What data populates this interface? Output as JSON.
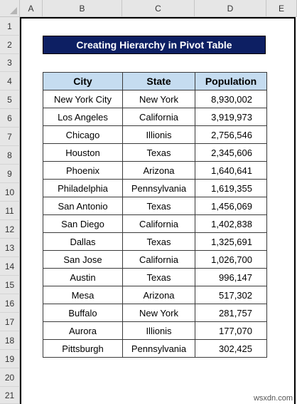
{
  "columns": [
    "A",
    "B",
    "C",
    "D",
    "E"
  ],
  "rows": [
    "1",
    "2",
    "3",
    "4",
    "5",
    "6",
    "7",
    "8",
    "9",
    "10",
    "11",
    "12",
    "13",
    "14",
    "15",
    "16",
    "17",
    "18",
    "19",
    "20",
    "21"
  ],
  "title": "Creating Hierarchy in Pivot Table",
  "table": {
    "headers": [
      "City",
      "State",
      "Population"
    ],
    "rows": [
      [
        "New York City",
        "New York",
        "8,930,002"
      ],
      [
        "Los Angeles",
        "California",
        "3,919,973"
      ],
      [
        "Chicago",
        "Illionis",
        "2,756,546"
      ],
      [
        "Houston",
        "Texas",
        "2,345,606"
      ],
      [
        "Phoenix",
        "Arizona",
        "1,640,641"
      ],
      [
        "Philadelphia",
        "Pennsylvania",
        "1,619,355"
      ],
      [
        "San Antonio",
        "Texas",
        "1,456,069"
      ],
      [
        "San Diego",
        "California",
        "1,402,838"
      ],
      [
        "Dallas",
        "Texas",
        "1,325,691"
      ],
      [
        "San Jose",
        "California",
        "1,026,700"
      ],
      [
        "Austin",
        "Texas",
        "996,147"
      ],
      [
        "Mesa",
        "Arizona",
        "517,302"
      ],
      [
        "Buffalo",
        "New York",
        "281,757"
      ],
      [
        "Aurora",
        "Illionis",
        "177,070"
      ],
      [
        "Pittsburgh",
        "Pennsylvania",
        "302,425"
      ]
    ]
  },
  "watermark": "wsxdn.com"
}
